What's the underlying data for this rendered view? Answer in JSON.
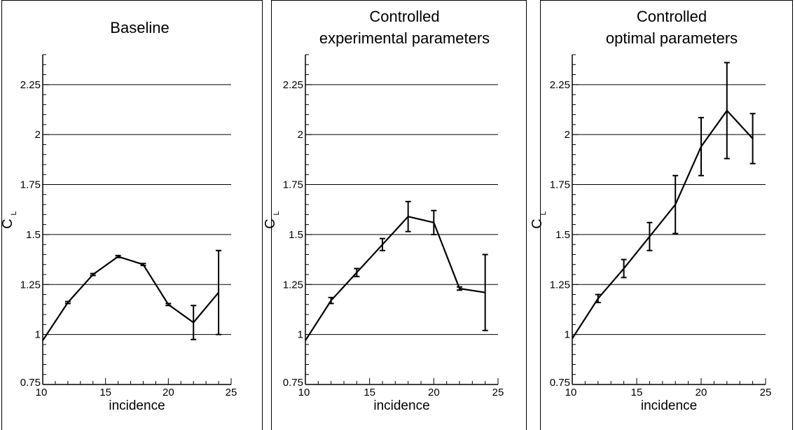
{
  "chart_data": [
    {
      "type": "line",
      "title_lines": [
        "Baseline"
      ],
      "xlabel": "incidence",
      "ylabel": "C",
      "ylabel_sub": "L",
      "xlim": [
        10,
        25
      ],
      "ylim": [
        0.75,
        2.4
      ],
      "x_ticks": [
        "10",
        "15",
        "20",
        "25"
      ],
      "y_ticks": [
        "0.75",
        "1",
        "1.25",
        "1.5",
        "1.75",
        "2",
        "2.25"
      ],
      "grid_y": [
        1,
        1.25,
        1.5,
        1.75,
        2,
        2.25
      ],
      "series": [
        {
          "x": [
            10,
            12,
            14,
            16,
            18,
            20,
            22,
            24
          ],
          "y": [
            0.97,
            1.16,
            1.3,
            1.39,
            1.35,
            1.15,
            1.06,
            1.21
          ],
          "err": [
            0.0,
            0.005,
            0.005,
            0.005,
            0.005,
            0.005,
            0.085,
            0.21
          ]
        }
      ]
    },
    {
      "type": "line",
      "title_lines": [
        "Controlled",
        "experimental parameters"
      ],
      "xlabel": "incidence",
      "ylabel": "C",
      "ylabel_sub": "L",
      "xlim": [
        10,
        25
      ],
      "ylim": [
        0.75,
        2.4
      ],
      "x_ticks": [
        "10",
        "15",
        "20",
        "25"
      ],
      "y_ticks": [
        "0.75",
        "1",
        "1.25",
        "1.5",
        "1.75",
        "2",
        "2.25"
      ],
      "grid_y": [
        1,
        1.25,
        1.5,
        1.75,
        2,
        2.25
      ],
      "series": [
        {
          "x": [
            10,
            12,
            14,
            16,
            18,
            20,
            22,
            24
          ],
          "y": [
            0.97,
            1.17,
            1.31,
            1.45,
            1.59,
            1.56,
            1.23,
            1.21
          ],
          "err": [
            0.0,
            0.015,
            0.02,
            0.03,
            0.075,
            0.06,
            0.008,
            0.19
          ]
        }
      ]
    },
    {
      "type": "line",
      "title_lines": [
        "Controlled",
        "optimal parameters"
      ],
      "xlabel": "incidence",
      "ylabel": "C",
      "ylabel_sub": "L",
      "xlim": [
        10,
        25
      ],
      "ylim": [
        0.75,
        2.4
      ],
      "x_ticks": [
        "10",
        "15",
        "20",
        "25"
      ],
      "y_ticks": [
        "0.75",
        "1",
        "1.25",
        "1.5",
        "1.75",
        "2",
        "2.25"
      ],
      "grid_y": [
        1,
        1.25,
        1.5,
        1.75,
        2,
        2.25
      ],
      "series": [
        {
          "x": [
            10,
            12,
            14,
            16,
            18,
            20,
            22,
            24
          ],
          "y": [
            0.98,
            1.18,
            1.33,
            1.49,
            1.65,
            1.94,
            2.12,
            1.98
          ],
          "err": [
            0.0,
            0.02,
            0.045,
            0.07,
            0.145,
            0.145,
            0.24,
            0.125
          ]
        }
      ]
    }
  ]
}
